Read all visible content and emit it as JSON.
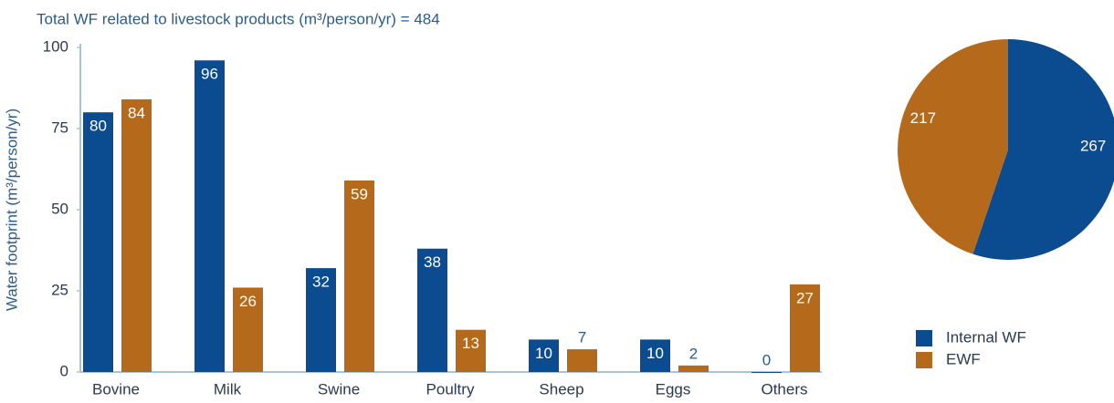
{
  "chart_data": [
    {
      "type": "bar",
      "title": "Total WF related to livestock products (m³/person/yr) = 484",
      "y_label": "Water footprint (m³/person/yr)",
      "categories": [
        "Bovine",
        "Milk",
        "Swine",
        "Poultry",
        "Sheep",
        "Eggs",
        "Others"
      ],
      "series": [
        {
          "name": "Internal WF",
          "color": "#0b4b8f",
          "values": [
            80,
            96,
            32,
            38,
            10,
            10,
            0
          ]
        },
        {
          "name": "EWF",
          "color": "#b5691b",
          "values": [
            84,
            26,
            59,
            13,
            7,
            2,
            27
          ]
        }
      ],
      "ylim": [
        0,
        100
      ],
      "yticks": [
        0,
        25,
        50,
        75,
        100
      ],
      "grid": false,
      "legend": "bottom-right"
    },
    {
      "type": "pie",
      "values": [
        267,
        217
      ],
      "colors": [
        "#0b4b8f",
        "#b5691b"
      ]
    }
  ]
}
